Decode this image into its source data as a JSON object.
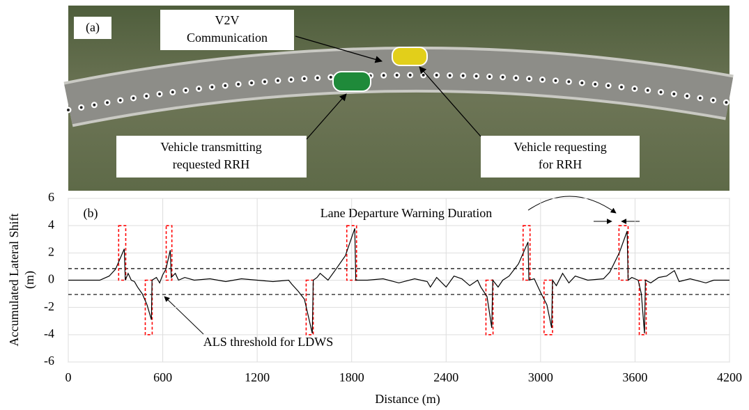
{
  "panel_a": {
    "label": "(a)",
    "callouts": [
      {
        "lines": [
          "V2V",
          "Communication"
        ]
      },
      {
        "lines": [
          "Vehicle transmitting",
          "requested RRH"
        ]
      },
      {
        "lines": [
          "Vehicle requesting",
          "for RRH"
        ]
      }
    ]
  },
  "chart_data": {
    "type": "line",
    "panel_label": "(b)",
    "xlabel": "Distance (m)",
    "ylabel": [
      "Accumulated Lateral Shift",
      "(m)"
    ],
    "annotations": [
      "Lane Departure Warning Duration",
      "ALS threshold for LDWS"
    ],
    "color": "#000000",
    "window_color": "#ff0000",
    "grid": true,
    "xlim": [
      0,
      4200
    ],
    "xticks": [
      0,
      600,
      1200,
      1800,
      2400,
      3000,
      3600,
      4200
    ],
    "ylim": [
      -6,
      6
    ],
    "yticks": [
      -6,
      -4,
      -2,
      0,
      2,
      4,
      6
    ],
    "thresholds": [
      0.85,
      -1.05
    ],
    "warning_windows": [
      {
        "x": [
          320,
          365
        ],
        "y": 4
      },
      {
        "x": [
          489,
          533
        ],
        "y": -4
      },
      {
        "x": [
          622,
          658
        ],
        "y": 4
      },
      {
        "x": [
          1511,
          1556
        ],
        "y": -4
      },
      {
        "x": [
          1769,
          1831
        ],
        "y": 4
      },
      {
        "x": [
          2653,
          2698
        ],
        "y": -4
      },
      {
        "x": [
          2889,
          2933
        ],
        "y": 4
      },
      {
        "x": [
          3022,
          3076
        ],
        "y": -4
      },
      {
        "x": [
          3498,
          3556
        ],
        "y": 4
      },
      {
        "x": [
          3627,
          3671
        ],
        "y": -4
      }
    ],
    "x": [
      0,
      200,
      260,
      300,
      356,
      362,
      380,
      400,
      420,
      440,
      470,
      500,
      528,
      532,
      560,
      580,
      600,
      620,
      648,
      654,
      680,
      700,
      740,
      800,
      900,
      1000,
      1100,
      1200,
      1300,
      1400,
      1420,
      1460,
      1500,
      1550,
      1556,
      1580,
      1600,
      1620,
      1650,
      1700,
      1760,
      1820,
      1826,
      1900,
      2000,
      2100,
      2200,
      2280,
      2300,
      2340,
      2400,
      2450,
      2500,
      2550,
      2600,
      2620,
      2660,
      2690,
      2696,
      2730,
      2760,
      2800,
      2860,
      2920,
      2926,
      2960,
      2980,
      3000,
      3040,
      3070,
      3076,
      3100,
      3140,
      3180,
      3220,
      3300,
      3400,
      3440,
      3500,
      3550,
      3556,
      3580,
      3620,
      3640,
      3660,
      3666,
      3700,
      3750,
      3800,
      3850,
      3880,
      3950,
      4050,
      4100,
      4200
    ],
    "values": [
      0,
      0,
      0.3,
      0.8,
      2.3,
      0,
      0.5,
      0,
      -0.1,
      -0.5,
      -1.0,
      -1.8,
      -2.9,
      0,
      0.2,
      -0.2,
      0.4,
      0.8,
      2.2,
      0.2,
      0.5,
      0,
      0.2,
      0,
      0.1,
      -0.1,
      0.1,
      0,
      -0.1,
      0,
      -0.3,
      -0.8,
      -1.4,
      -3.9,
      0,
      0.2,
      0.5,
      0.3,
      0,
      0.8,
      1.8,
      3.8,
      0,
      0,
      0.1,
      -0.2,
      0.1,
      -0.1,
      -0.5,
      0.2,
      -0.5,
      0.3,
      0.1,
      -0.4,
      0,
      -0.5,
      -1.2,
      -3.5,
      0,
      -0.5,
      0,
      0.3,
      1.2,
      2.8,
      0,
      0.1,
      -0.4,
      -0.9,
      -1.8,
      -3.5,
      0,
      -0.4,
      0.5,
      -0.2,
      0.3,
      0,
      0.1,
      0.6,
      2.0,
      3.6,
      0,
      0.2,
      0,
      -1.0,
      -3.9,
      0,
      -0.2,
      0.2,
      0.3,
      0.7,
      -0.1,
      0.1,
      -0.2,
      0,
      0
    ]
  }
}
